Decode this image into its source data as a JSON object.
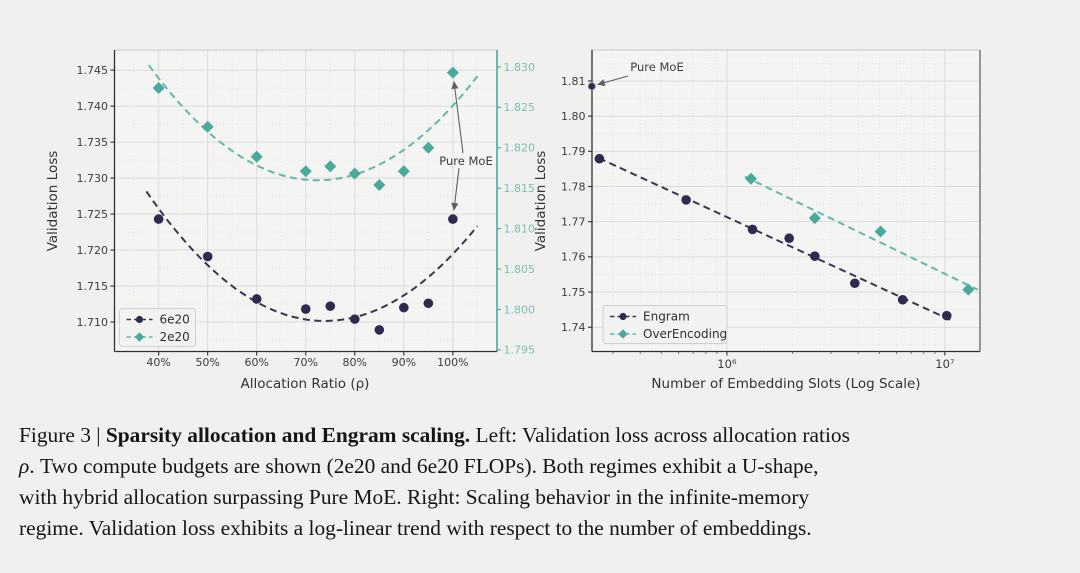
{
  "colors": {
    "navy": "#2e2b50",
    "navy_line": "#3a3550",
    "teal": "#4ba99b",
    "teal_line": "#65b7a9",
    "teal_tick_label": "#7cc0b6",
    "figure_background": "#f0f0ef",
    "plot_background": "#f4f4f2",
    "grid_major": "#dcdcda",
    "grid_minor": "#e3e3e1",
    "spine_dark": "#303030",
    "spine_light": "#c9c9c7",
    "annotation": "#5f5f5f",
    "tick_label": "#3d3d3d"
  },
  "chart_data": [
    {
      "id": "allocation",
      "type": "scatter",
      "xlabel": "Allocation Ratio (ρ)",
      "ylabel": "Validation Loss",
      "xlim": [
        31,
        109
      ],
      "x_ticks": [
        40,
        50,
        60,
        70,
        80,
        90,
        100
      ],
      "x_tick_labels": [
        "40%",
        "50%",
        "60%",
        "70%",
        "80%",
        "90%",
        "100%"
      ],
      "ylim_left": [
        1.7059,
        1.7478
      ],
      "y_ticks_left": [
        1.71,
        1.715,
        1.72,
        1.725,
        1.73,
        1.735,
        1.74,
        1.745
      ],
      "y_tick_labels_left": [
        "1.710",
        "1.715",
        "1.720",
        "1.725",
        "1.730",
        "1.735",
        "1.740",
        "1.745"
      ],
      "ylim_right": [
        1.7948,
        1.8321
      ],
      "y_ticks_right": [
        1.795,
        1.8,
        1.805,
        1.81,
        1.815,
        1.82,
        1.825,
        1.83
      ],
      "y_tick_labels_right": [
        "1.795",
        "1.800",
        "1.805",
        "1.810",
        "1.815",
        "1.820",
        "1.825",
        "1.830"
      ],
      "series": [
        {
          "name": "6e20",
          "axis": "left",
          "marker": "circle",
          "x": [
            40,
            50,
            60,
            70,
            75,
            80,
            85,
            90,
            95,
            100
          ],
          "y": [
            1.7243,
            1.7191,
            1.7132,
            1.7118,
            1.7122,
            1.7104,
            1.7089,
            1.712,
            1.7126,
            1.7243
          ],
          "fit": "quadratic",
          "fit_range": [
            37.5,
            105
          ]
        },
        {
          "name": "2e20",
          "axis": "right",
          "marker": "diamond",
          "x": [
            40,
            50,
            60,
            70,
            75,
            80,
            85,
            90,
            95,
            100
          ],
          "y": [
            1.8274,
            1.8226,
            1.8189,
            1.8171,
            1.8177,
            1.8168,
            1.8154,
            1.8171,
            1.82,
            1.8293
          ],
          "fit": "quadratic",
          "fit_range": [
            38,
            105
          ]
        }
      ],
      "legend": [
        "6e20",
        "2e20"
      ],
      "annotation": {
        "text": "Pure MoE"
      }
    },
    {
      "id": "scaling",
      "type": "scatter",
      "xlabel": "Number of Embedding Slots (Log Scale)",
      "ylabel": "Validation Loss",
      "x_scale": "log",
      "xlim_log": [
        5.381,
        7.161
      ],
      "x_ticks_log": [
        6,
        7
      ],
      "x_tick_labels": [
        "10⁶",
        "10⁷"
      ],
      "ylim": [
        1.7331,
        1.8188
      ],
      "y_ticks": [
        1.74,
        1.75,
        1.76,
        1.77,
        1.78,
        1.79,
        1.8,
        1.81
      ],
      "y_tick_labels": [
        "1.74",
        "1.75",
        "1.76",
        "1.77",
        "1.78",
        "1.79",
        "1.80",
        "1.81"
      ],
      "series": [
        {
          "name": "Engram",
          "marker": "circle",
          "x": [
            260000,
            650000,
            1310000,
            1930000,
            2530000,
            3860000,
            6400000,
            10200000
          ],
          "y": [
            1.7879,
            1.7762,
            1.7678,
            1.7653,
            1.7602,
            1.7525,
            1.7478,
            1.7433
          ],
          "fit": "loglinear",
          "fit_range_log": [
            5.413,
            7.028
          ]
        },
        {
          "name": "OverEncoding",
          "marker": "diamond",
          "x": [
            1290000,
            2530000,
            5070000,
            12800000
          ],
          "y": [
            1.7822,
            1.771,
            1.7672,
            1.7507
          ],
          "fit": "loglinear",
          "fit_range_log": [
            6.083,
            7.15
          ]
        }
      ],
      "pure_moe_point": {
        "x": 240000,
        "y": 1.8085
      },
      "legend": [
        "Engram",
        "OverEncoding"
      ],
      "annotation": {
        "text": "Pure MoE"
      }
    }
  ],
  "caption": {
    "lines": [
      {
        "segments": [
          {
            "text": "Figure 3 | "
          },
          {
            "text": "Sparsity allocation and Engram scaling.",
            "bold": true
          },
          {
            "text": " Left: Validation loss across allocation ratios"
          }
        ]
      },
      {
        "segments": [
          {
            "text": "ρ",
            "italic": true
          },
          {
            "text": ". Two compute budgets are shown (2e20 and 6e20 FLOPs). Both regimes exhibit a U-shape,"
          }
        ]
      },
      {
        "segments": [
          {
            "text": "with hybrid allocation surpassing Pure MoE. Right: Scaling behavior in the infinite-memory"
          }
        ]
      },
      {
        "segments": [
          {
            "text": "regime. Validation loss exhibits a log-linear trend with respect to the number of embeddings."
          }
        ]
      }
    ]
  }
}
